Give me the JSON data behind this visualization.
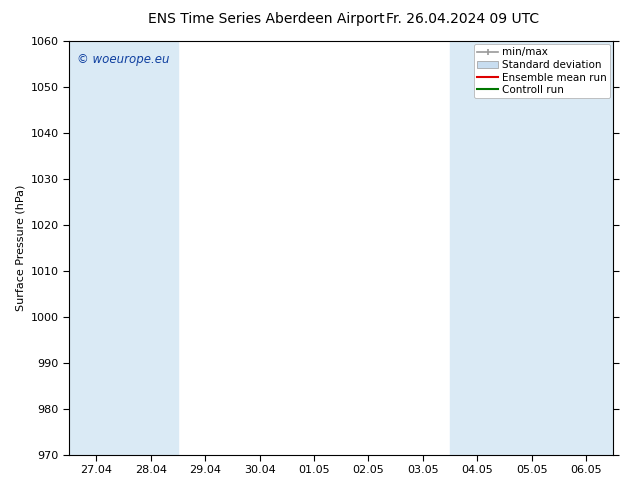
{
  "title": "ENS Time Series Aberdeen Airport",
  "title2": "Fr. 26.04.2024 09 UTC",
  "ylabel": "Surface Pressure (hPa)",
  "ylim": [
    970,
    1060
  ],
  "yticks": [
    970,
    980,
    990,
    1000,
    1010,
    1020,
    1030,
    1040,
    1050,
    1060
  ],
  "xtick_labels": [
    "27.04",
    "28.04",
    "29.04",
    "30.04",
    "01.05",
    "02.05",
    "03.05",
    "04.05",
    "05.05",
    "06.05"
  ],
  "n_xticks": 10,
  "shaded_indices": [
    0,
    1,
    7,
    8,
    9
  ],
  "shaded_color": "#daeaf5",
  "background_color": "#ffffff",
  "watermark": "© woeurope.eu",
  "watermark_color": "#1040a0",
  "legend_entries": [
    "min/max",
    "Standard deviation",
    "Ensemble mean run",
    "Controll run"
  ],
  "legend_line_color": "#999999",
  "legend_fill_color": "#c8ddf0",
  "legend_red": "#dd0000",
  "legend_green": "#007700",
  "title_fontsize": 10,
  "axis_fontsize": 8,
  "tick_fontsize": 8,
  "legend_fontsize": 7.5
}
